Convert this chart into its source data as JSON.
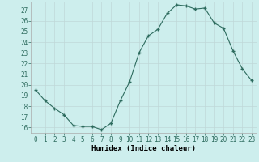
{
  "x": [
    0,
    1,
    2,
    3,
    4,
    5,
    6,
    7,
    8,
    9,
    10,
    11,
    12,
    13,
    14,
    15,
    16,
    17,
    18,
    19,
    20,
    21,
    22,
    23
  ],
  "y": [
    19.5,
    18.5,
    17.8,
    17.2,
    16.2,
    16.1,
    16.1,
    15.8,
    16.4,
    18.5,
    20.3,
    23.0,
    24.6,
    25.2,
    26.7,
    27.5,
    27.4,
    27.1,
    27.2,
    25.8,
    25.3,
    23.2,
    21.5,
    20.4
  ],
  "line_color": "#2d6b5e",
  "marker": "+",
  "marker_size": 3.5,
  "marker_lw": 1.0,
  "bg_color": "#cdeeed",
  "grid_color": "#c0d8d8",
  "xlabel": "Humidex (Indice chaleur)",
  "ylabel": "",
  "xlim": [
    -0.5,
    23.5
  ],
  "ylim": [
    15.5,
    27.8
  ],
  "yticks": [
    16,
    17,
    18,
    19,
    20,
    21,
    22,
    23,
    24,
    25,
    26,
    27
  ],
  "xtick_labels": [
    "0",
    "1",
    "2",
    "3",
    "4",
    "5",
    "6",
    "7",
    "8",
    "9",
    "10",
    "11",
    "12",
    "13",
    "14",
    "15",
    "16",
    "17",
    "18",
    "19",
    "20",
    "21",
    "22",
    "23"
  ],
  "label_fontsize": 6.5,
  "tick_fontsize": 5.5
}
